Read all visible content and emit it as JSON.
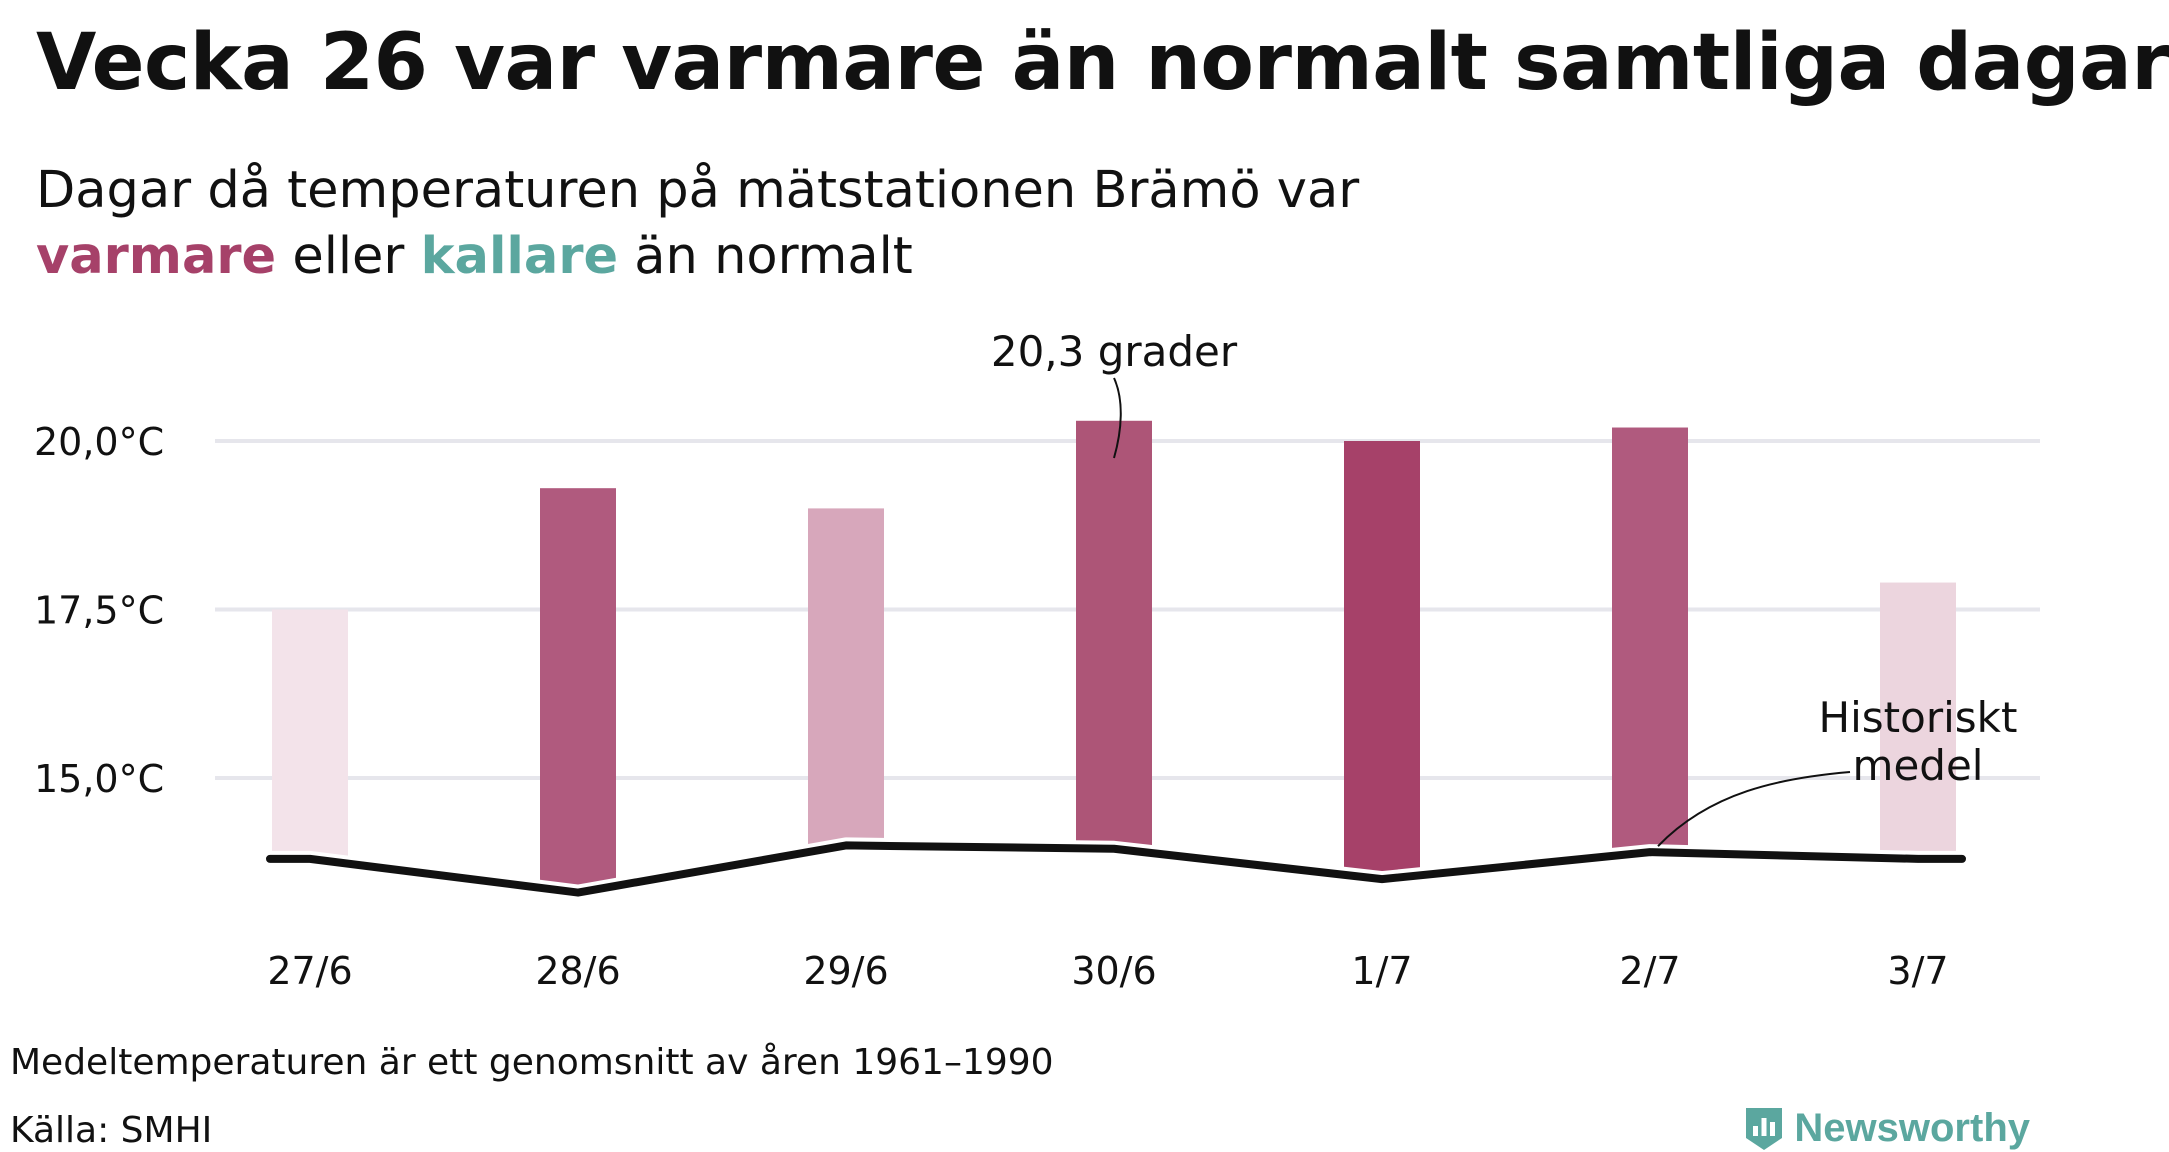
{
  "title": "Vecka 26 var varmare än normalt samtliga dagar",
  "subtitle": {
    "line1": "Dagar då temperaturen på mätstationen Brämö var",
    "warm_word": "varmare",
    "middle": "eller",
    "cold_word": "kallare",
    "end": "än normalt"
  },
  "colors": {
    "warm": "#a64169",
    "cold": "#5ba79f",
    "line": "#111111",
    "grid": "#e6e6ec"
  },
  "chart_data": {
    "type": "bar",
    "categories": [
      "27/6",
      "28/6",
      "29/6",
      "30/6",
      "1/7",
      "2/7",
      "3/7"
    ],
    "series": [
      {
        "values": [
          17.5,
          19.3,
          19.0,
          20.3,
          20.0,
          20.2,
          17.9
        ]
      },
      {
        "name": "Historiskt medel",
        "values": [
          13.8,
          13.3,
          14.0,
          13.95,
          13.5,
          13.9,
          13.8
        ]
      }
    ],
    "bar_colors": [
      "#f3e3ea",
      "#b05a7e",
      "#d7a7bb",
      "#ad5577",
      "#a64169",
      "#b05a7e",
      "#ecd5de"
    ],
    "ylim": [
      12.8,
      21.2
    ],
    "yticks": [
      15.0,
      17.5,
      20.0
    ],
    "ytick_labels": [
      "15,0°C",
      "17,5°C",
      "20,0°C"
    ],
    "grid": true,
    "annotations": {
      "max_label": "20,3 grader",
      "avg_label_line1": "Historiskt",
      "avg_label_line2": "medel"
    }
  },
  "footer": {
    "note": "Medeltemperaturen är ett genomsnitt av åren 1961–1990",
    "source": "Källa: SMHI",
    "logo_text": "Newsworthy"
  }
}
